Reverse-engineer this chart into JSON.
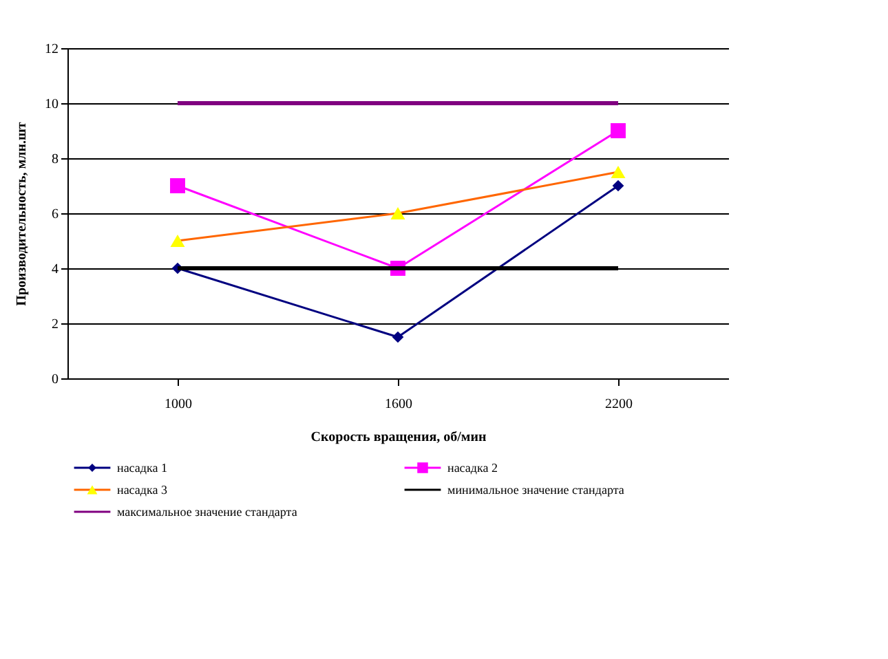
{
  "chart_data": {
    "type": "line",
    "xlabel": "Скорость вращения, об/мин",
    "ylabel": "Производительность, млн.шт",
    "categories": [
      "1000",
      "1600",
      "2200"
    ],
    "ylim": [
      0,
      12
    ],
    "yticks": [
      0,
      2,
      4,
      6,
      8,
      10,
      12
    ],
    "grid": "y",
    "legend": "bottom",
    "series": [
      {
        "name": "насадка 1",
        "color": "#000080",
        "marker": "diamond",
        "values": [
          4,
          1.5,
          7
        ]
      },
      {
        "name": "насадка 2",
        "color": "#ff00ff",
        "marker": "square",
        "values": [
          7,
          4,
          9
        ]
      },
      {
        "name": "насадка 3",
        "color": "#ff6600",
        "colors": [
          "#ffff00",
          "#ffff00",
          "#ffff00"
        ],
        "marker": "triangle",
        "values": [
          5,
          6,
          7.5
        ]
      },
      {
        "name": "минимальное значение стандарта",
        "color": "#000000",
        "marker": "none",
        "values": [
          4,
          4,
          4
        ]
      },
      {
        "name": "максимальное значение стандарта",
        "color": "#800080",
        "marker": "none",
        "values": [
          10,
          10,
          10
        ]
      }
    ]
  }
}
